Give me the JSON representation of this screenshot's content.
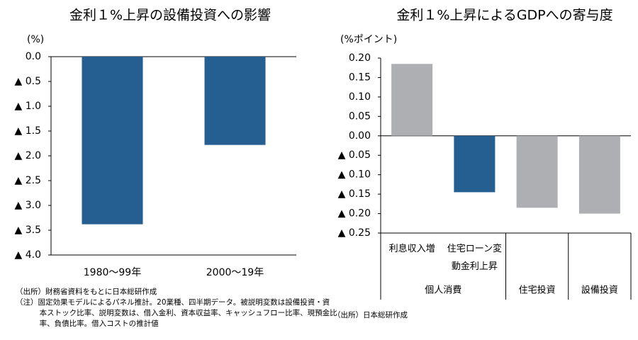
{
  "chart_data": [
    {
      "type": "bar",
      "title": "金利１%上昇の設備投資への影響",
      "y_unit": "(%)",
      "categories": [
        "1980～99年",
        "2000～19年"
      ],
      "values": [
        -3.38,
        -1.78
      ],
      "color": "#255e91",
      "ylim": [
        -4,
        0
      ],
      "yticks": [
        {
          "value": 0,
          "label": "0.0"
        },
        {
          "value": -0.5,
          "label": "▲ 0.5"
        },
        {
          "value": -1,
          "label": "▲ 1.0"
        },
        {
          "value": -1.5,
          "label": "▲ 1.5"
        },
        {
          "value": -2,
          "label": "▲ 2.0"
        },
        {
          "value": -2.5,
          "label": "▲ 2.5"
        },
        {
          "value": -3,
          "label": "▲ 3.0"
        },
        {
          "value": -3.5,
          "label": "▲ 3.5"
        },
        {
          "value": -4,
          "label": "▲ 4.0"
        }
      ],
      "notes": [
        "（出所）財務省資料をもとに日本総研作成",
        "（注）固定効果モデルによるパネル推計。20業種、四半期データ。被説明変数は設備投資・資本ストック比率、説明変数は、借入金利、資本収益率、キャッシュフロー比率、現預金比率、負債比率。借入コストの推計値"
      ]
    },
    {
      "type": "grouped-bar",
      "title": "金利１%上昇によるGDPへの寄与度",
      "y_unit": "(%ポイント)",
      "groups": [
        {
          "name": "個人消費",
          "categories": [
            "利息収入増",
            "住宅ローン変動金利上昇"
          ],
          "values": [
            0.185,
            -0.145
          ],
          "colors": [
            "#aeafb2",
            "#255e91"
          ]
        },
        {
          "name": "住宅投資",
          "categories": [
            null
          ],
          "values": [
            -0.185
          ],
          "colors": [
            "#aeafb2"
          ]
        },
        {
          "name": "設備投資",
          "categories": [
            null
          ],
          "values": [
            -0.2
          ],
          "colors": [
            "#aeafb2"
          ]
        }
      ],
      "ylim": [
        -0.25,
        0.2
      ],
      "yticks": [
        {
          "value": 0.2,
          "label": "0.20"
        },
        {
          "value": 0.15,
          "label": "0.15"
        },
        {
          "value": 0.1,
          "label": "0.10"
        },
        {
          "value": 0.05,
          "label": "0.05"
        },
        {
          "value": 0,
          "label": "0.00"
        },
        {
          "value": -0.05,
          "label": "▲ 0.05"
        },
        {
          "value": -0.1,
          "label": "▲ 0.10"
        },
        {
          "value": -0.15,
          "label": "▲ 0.15"
        },
        {
          "value": -0.2,
          "label": "▲ 0.20"
        },
        {
          "value": -0.25,
          "label": "▲ 0.25"
        }
      ],
      "notes": [
        "（出所）日本総研作成"
      ]
    }
  ]
}
